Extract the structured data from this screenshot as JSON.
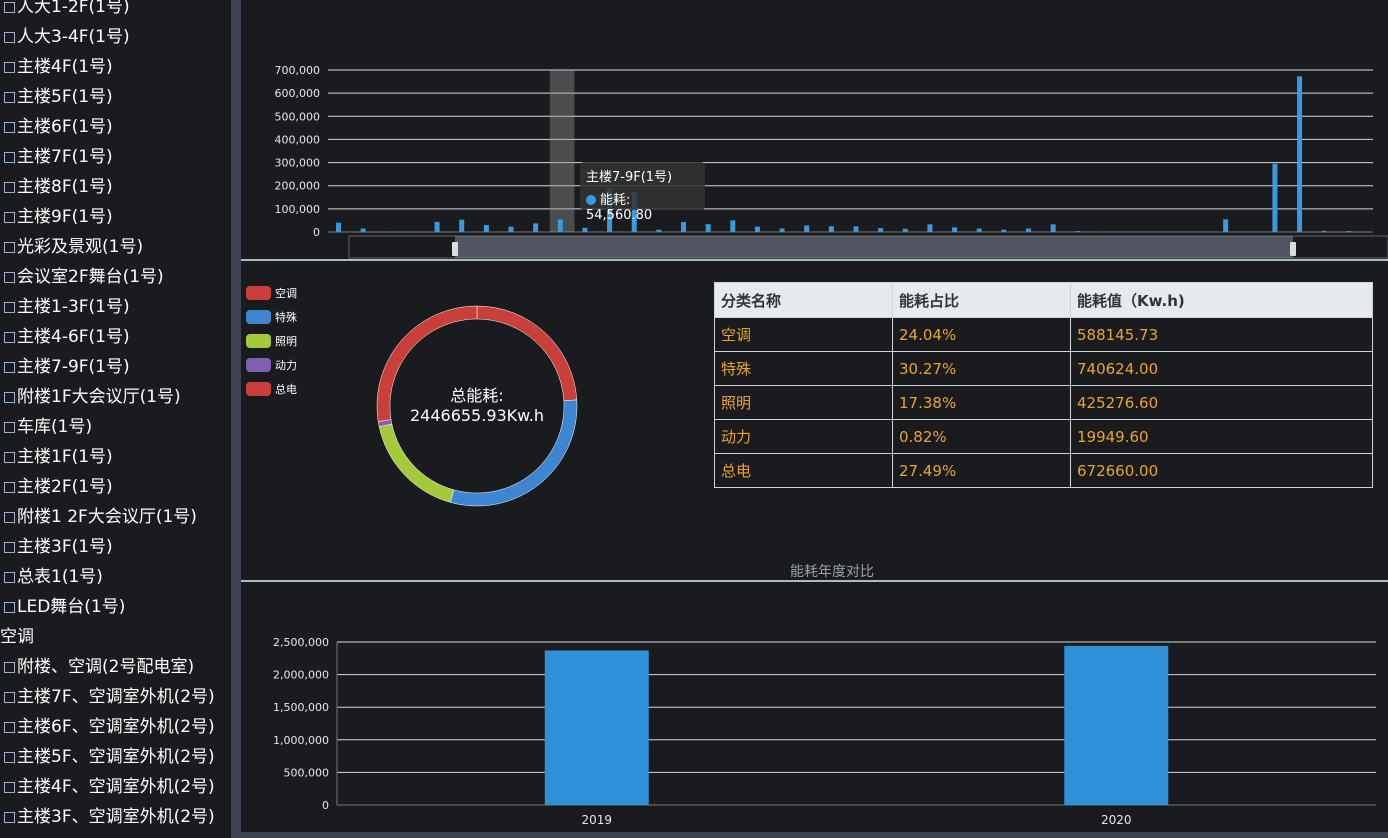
{
  "sidebar": {
    "items": [
      {
        "label": "人大1-2F(1号)",
        "checkbox": true
      },
      {
        "label": "人大3-4F(1号)",
        "checkbox": true
      },
      {
        "label": "主楼4F(1号)",
        "checkbox": true
      },
      {
        "label": "主楼5F(1号)",
        "checkbox": true
      },
      {
        "label": "主楼6F(1号)",
        "checkbox": true
      },
      {
        "label": "主楼7F(1号)",
        "checkbox": true
      },
      {
        "label": "主楼8F(1号)",
        "checkbox": true
      },
      {
        "label": "主楼9F(1号)",
        "checkbox": true
      },
      {
        "label": "光彩及景观(1号)",
        "checkbox": true
      },
      {
        "label": "会议室2F舞台(1号)",
        "checkbox": true
      },
      {
        "label": "主楼1-3F(1号)",
        "checkbox": true
      },
      {
        "label": "主楼4-6F(1号)",
        "checkbox": true
      },
      {
        "label": "主楼7-9F(1号)",
        "checkbox": true
      },
      {
        "label": "附楼1F大会议厅(1号)",
        "checkbox": true
      },
      {
        "label": "车库(1号)",
        "checkbox": true
      },
      {
        "label": "主楼1F(1号)",
        "checkbox": true
      },
      {
        "label": "主楼2F(1号)",
        "checkbox": true
      },
      {
        "label": "附楼1 2F大会议厅(1号)",
        "checkbox": true
      },
      {
        "label": "主楼3F(1号)",
        "checkbox": true
      },
      {
        "label": "总表1(1号)",
        "checkbox": true
      },
      {
        "label": "LED舞台(1号)",
        "checkbox": true
      },
      {
        "label": "空调",
        "checkbox": false
      },
      {
        "label": "附楼、空调(2号配电室)",
        "checkbox": true
      },
      {
        "label": "主楼7F、空调室外机(2号)",
        "checkbox": true
      },
      {
        "label": "主楼6F、空调室外机(2号)",
        "checkbox": true
      },
      {
        "label": "主楼5F、空调室外机(2号)",
        "checkbox": true
      },
      {
        "label": "主楼4F、空调室外机(2号)",
        "checkbox": true
      },
      {
        "label": "主楼3F、空调室外机(2号)",
        "checkbox": true
      }
    ]
  },
  "tooltip": {
    "title": "主楼7-9F(1号)",
    "series": "能耗",
    "value": "54,560.80"
  },
  "donut": {
    "center_line1": "总能耗:",
    "center_line2": "2446655.93Kw.h"
  },
  "legend": [
    {
      "label": "空调",
      "color": "#c9403b"
    },
    {
      "label": "特殊",
      "color": "#3e86d2"
    },
    {
      "label": "照明",
      "color": "#a4c93a"
    },
    {
      "label": "动力",
      "color": "#7f5fb0"
    },
    {
      "label": "总电",
      "color": "#c9403b"
    }
  ],
  "table": {
    "headers": [
      "分类名称",
      "能耗占比",
      "能耗值（Kw.h)"
    ],
    "rows": [
      [
        "空调",
        "24.04%",
        "588145.73"
      ],
      [
        "特殊",
        "30.27%",
        "740624.00"
      ],
      [
        "照明",
        "17.38%",
        "425276.60"
      ],
      [
        "动力",
        "0.82%",
        "19949.60"
      ],
      [
        "总电",
        "27.49%",
        "672660.00"
      ]
    ]
  },
  "chart_data": [
    {
      "type": "bar",
      "title": "",
      "series_name": "能耗",
      "ylim": [
        0,
        700000
      ],
      "yticks": [
        "700,000",
        "600,000",
        "500,000",
        "400,000",
        "300,000",
        "200,000",
        "100,000",
        "0"
      ],
      "values": [
        40000,
        15000,
        2000,
        1000,
        44000,
        53000,
        30000,
        23000,
        37000,
        54560.8,
        18000,
        190000,
        170000,
        10000,
        43000,
        34000,
        50000,
        23000,
        15000,
        28000,
        25000,
        24000,
        17000,
        14000,
        33000,
        20000,
        15000,
        10000,
        15000,
        33000,
        4000,
        2000,
        1000,
        1000,
        500,
        500,
        55000,
        1000,
        295000,
        672660,
        5000,
        4000
      ],
      "highlight_index": 9
    },
    {
      "type": "pie",
      "subtype": "donut",
      "slices": [
        {
          "name": "空调",
          "value": 588145.73
        },
        {
          "name": "特殊",
          "value": 740624.0
        },
        {
          "name": "照明",
          "value": 425276.6
        },
        {
          "name": "动力",
          "value": 19949.6
        },
        {
          "name": "总电",
          "value": 672660.0
        }
      ]
    },
    {
      "type": "bar",
      "title": "能耗年度对比",
      "categories": [
        "2019",
        "2020"
      ],
      "values": [
        2370000,
        2440000
      ],
      "ylim": [
        0,
        2500000
      ],
      "yticks": [
        "2,500,000",
        "2,000,000",
        "1,500,000",
        "1,000,000",
        "500,000",
        "0"
      ]
    }
  ]
}
